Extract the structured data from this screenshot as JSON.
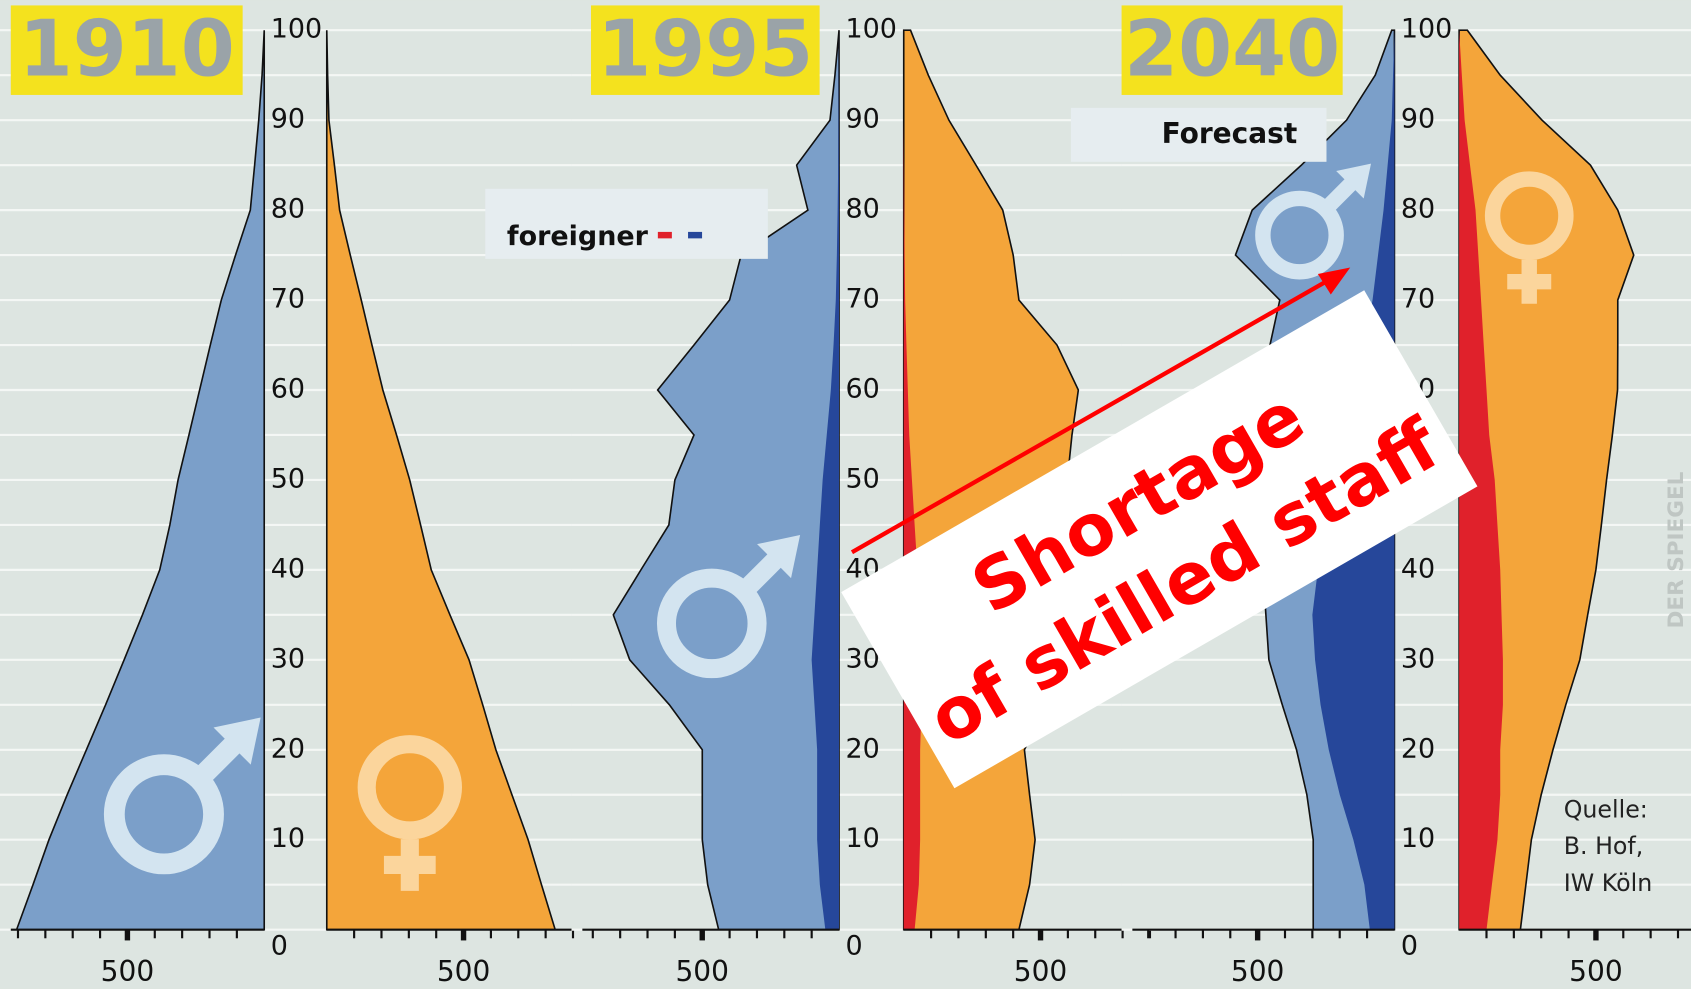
{
  "chart_data": [
    {
      "type": "pyramid",
      "title": "1910",
      "y": [
        0,
        5,
        10,
        15,
        20,
        25,
        30,
        35,
        40,
        45,
        50,
        55,
        60,
        65,
        70,
        75,
        80,
        85,
        90,
        95,
        100
      ],
      "yticks": [
        0,
        10,
        20,
        30,
        40,
        50,
        60,
        70,
        80,
        90,
        100
      ],
      "grid": true,
      "xlim": [
        0,
        950
      ],
      "xticks": [
        500
      ],
      "xminorticks": [
        100,
        200,
        300,
        400,
        600,
        700,
        800,
        900
      ],
      "series": [
        {
          "side": "left",
          "color": "#7b9fc9",
          "values": [
            905,
            845,
            787,
            720,
            650,
            580,
            512,
            445,
            382,
            345,
            315,
            275,
            236,
            197,
            157,
            105,
            51,
            35,
            20,
            8,
            0
          ]
        },
        {
          "side": "right",
          "color": "#f4a53a",
          "values": [
            835,
            785,
            736,
            677,
            618,
            570,
            520,
            450,
            382,
            343,
            303,
            255,
            205,
            165,
            126,
            86,
            47,
            28,
            8,
            3,
            0
          ]
        }
      ]
    },
    {
      "type": "pyramid",
      "title": "1995",
      "y": [
        0,
        5,
        10,
        15,
        20,
        25,
        30,
        35,
        40,
        45,
        50,
        55,
        60,
        65,
        70,
        75,
        80,
        85,
        90,
        95,
        100
      ],
      "yticks": [
        0,
        10,
        20,
        30,
        40,
        50,
        60,
        70,
        80,
        90,
        100
      ],
      "grid": true,
      "xlim": [
        0,
        950
      ],
      "xticks": [
        500
      ],
      "xminorticks": [
        100,
        200,
        300,
        400,
        600,
        700,
        800,
        900
      ],
      "series": [
        {
          "side": "left",
          "color": "#7b9fc9",
          "values": [
            440,
            480,
            500,
            500,
            500,
            620,
            765,
            825,
            724,
            622,
            600,
            530,
            663,
            530,
            400,
            358,
            114,
            155,
            33,
            15,
            0
          ]
        },
        {
          "side": "right",
          "color": "#f4a53a",
          "values": [
            421,
            460,
            480,
            460,
            441,
            520,
            600,
            638,
            630,
            610,
            598,
            615,
            638,
            560,
            421,
            400,
            362,
            264,
            165,
            90,
            25
          ]
        },
        {
          "side": "left",
          "color": "#26479a",
          "values": [
            50,
            70,
            80,
            80,
            80,
            90,
            100,
            90,
            80,
            70,
            60,
            45,
            30,
            20,
            12,
            8,
            5,
            3,
            2,
            1,
            0
          ]
        },
        {
          "side": "right",
          "color": "#e0212b",
          "values": [
            40,
            55,
            60,
            60,
            60,
            65,
            70,
            60,
            50,
            40,
            30,
            20,
            15,
            10,
            5,
            3,
            2,
            1,
            0,
            0,
            0
          ]
        }
      ]
    },
    {
      "type": "pyramid",
      "title": "2040",
      "y": [
        0,
        5,
        10,
        15,
        20,
        25,
        30,
        35,
        40,
        45,
        50,
        55,
        60,
        65,
        70,
        75,
        80,
        85,
        90,
        95,
        100
      ],
      "yticks": [
        0,
        10,
        20,
        30,
        40,
        50,
        60,
        70,
        80,
        90,
        100
      ],
      "grid": true,
      "xlim": [
        0,
        950
      ],
      "xticks": [
        500
      ],
      "xminorticks": [
        100,
        200,
        300,
        400,
        600,
        700,
        800,
        900
      ],
      "series": [
        {
          "side": "left",
          "color": "#7b9fc9",
          "values": [
            297,
            297,
            297,
            320,
            358,
            410,
            459,
            470,
            480,
            480,
            480,
            480,
            470,
            455,
            419,
            581,
            520,
            340,
            175,
            70,
            10
          ]
        },
        {
          "side": "right",
          "color": "#f4a53a",
          "values": [
            224,
            244,
            264,
            300,
            343,
            390,
            441,
            470,
            500,
            520,
            539,
            560,
            579,
            580,
            580,
            638,
            580,
            480,
            303,
            150,
            30
          ]
        },
        {
          "side": "left",
          "color": "#26479a",
          "values": [
            90,
            110,
            150,
            200,
            240,
            270,
            290,
            300,
            280,
            250,
            220,
            180,
            140,
            110,
            80,
            60,
            40,
            25,
            10,
            5,
            0
          ]
        },
        {
          "side": "right",
          "color": "#e0212b",
          "values": [
            100,
            120,
            140,
            150,
            150,
            160,
            160,
            155,
            150,
            140,
            130,
            110,
            100,
            90,
            80,
            70,
            60,
            40,
            20,
            10,
            0
          ]
        }
      ]
    }
  ],
  "annotations": {
    "forecast": "Forecast",
    "legend": "foreigner",
    "callout": [
      "Shortage",
      "of skilled staff"
    ],
    "source": [
      "Quelle:",
      "B. Hof,",
      "IW Köln"
    ],
    "credit": "DER SPIEGEL"
  }
}
